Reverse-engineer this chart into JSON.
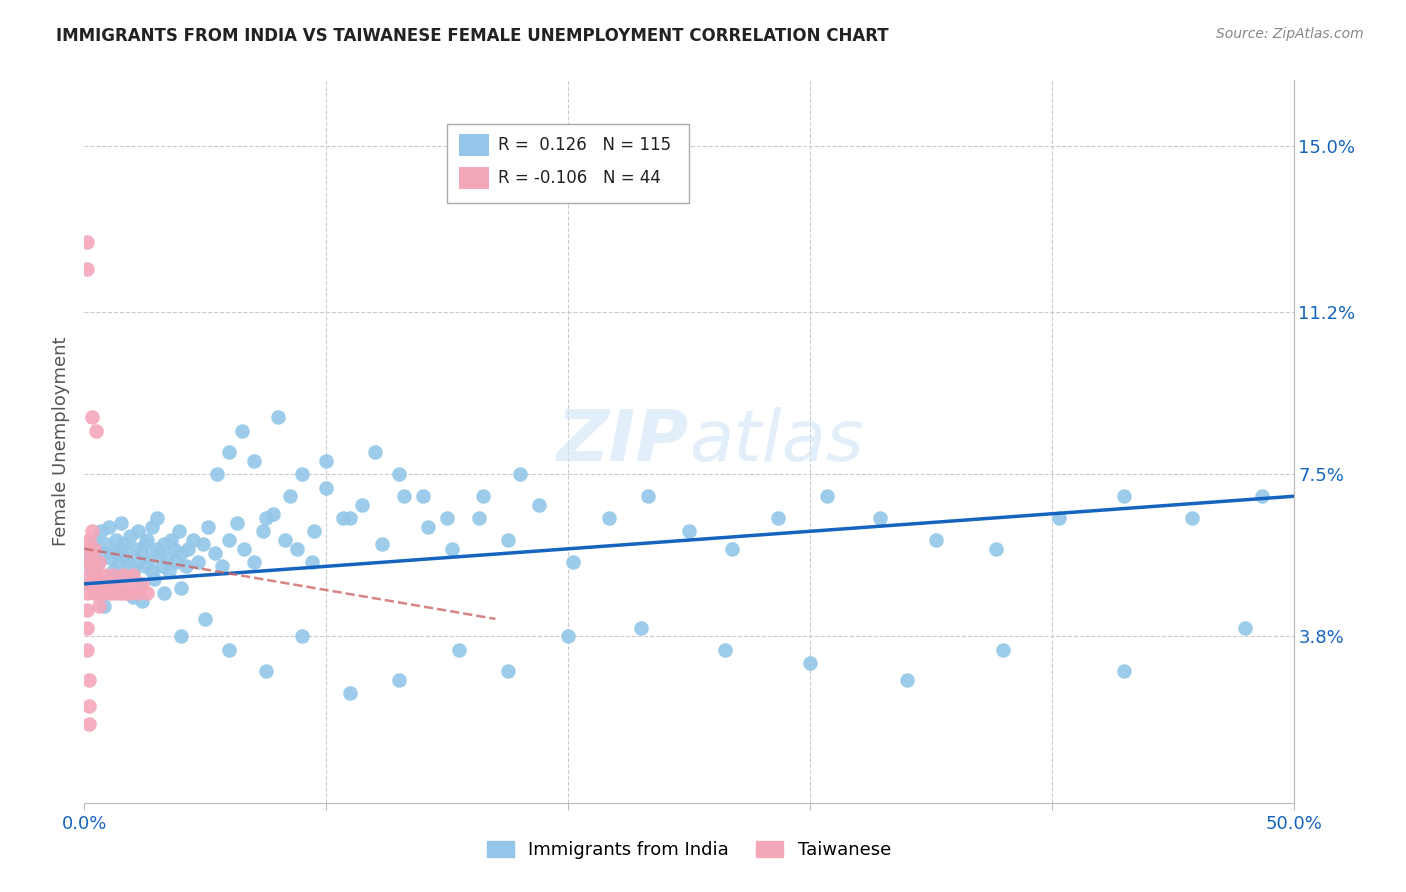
{
  "title": "IMMIGRANTS FROM INDIA VS TAIWANESE FEMALE UNEMPLOYMENT CORRELATION CHART",
  "source": "Source: ZipAtlas.com",
  "ylabel": "Female Unemployment",
  "legend_label1": "Immigrants from India",
  "legend_label2": "Taiwanese",
  "legend_r1_val": "0.126",
  "legend_n1_val": "115",
  "legend_r2_val": "-0.106",
  "legend_n2_val": "44",
  "color_india": "#93C6E8",
  "color_taiwan": "#F4A7B9",
  "color_india_line": "#1565C0",
  "color_taiwan_line": "#cc6666",
  "background_color": "#ffffff",
  "grid_color": "#cccccc",
  "right_ytick_vals": [
    15.0,
    11.2,
    7.5,
    3.8
  ],
  "right_ytick_labels": [
    "15.0%",
    "11.2%",
    "7.5%",
    "3.8%"
  ],
  "xlim": [
    0.0,
    0.5
  ],
  "ylim": [
    0.0,
    16.5
  ],
  "india_trend_x": [
    0.0,
    0.5
  ],
  "india_trend_y": [
    5.0,
    7.0
  ],
  "taiwan_trend_x": [
    0.0,
    0.17
  ],
  "taiwan_trend_y": [
    5.8,
    4.2
  ],
  "india_x": [
    0.001,
    0.002,
    0.003,
    0.004,
    0.004,
    0.005,
    0.006,
    0.007,
    0.007,
    0.008,
    0.008,
    0.009,
    0.01,
    0.01,
    0.011,
    0.012,
    0.012,
    0.013,
    0.013,
    0.014,
    0.015,
    0.015,
    0.016,
    0.016,
    0.017,
    0.018,
    0.018,
    0.019,
    0.02,
    0.02,
    0.021,
    0.022,
    0.022,
    0.023,
    0.024,
    0.024,
    0.025,
    0.025,
    0.026,
    0.027,
    0.028,
    0.028,
    0.029,
    0.03,
    0.03,
    0.031,
    0.032,
    0.033,
    0.033,
    0.034,
    0.035,
    0.036,
    0.037,
    0.038,
    0.039,
    0.04,
    0.04,
    0.042,
    0.043,
    0.045,
    0.047,
    0.049,
    0.051,
    0.054,
    0.057,
    0.06,
    0.063,
    0.066,
    0.07,
    0.074,
    0.078,
    0.083,
    0.088,
    0.094,
    0.1,
    0.107,
    0.115,
    0.123,
    0.132,
    0.142,
    0.152,
    0.163,
    0.175,
    0.188,
    0.202,
    0.217,
    0.233,
    0.25,
    0.268,
    0.287,
    0.307,
    0.329,
    0.352,
    0.377,
    0.403,
    0.43,
    0.458,
    0.487,
    0.055,
    0.06,
    0.065,
    0.07,
    0.075,
    0.08,
    0.085,
    0.09,
    0.095,
    0.1,
    0.11,
    0.12,
    0.13,
    0.14,
    0.15,
    0.165,
    0.18
  ],
  "india_y": [
    5.5,
    5.8,
    5.3,
    6.0,
    5.2,
    4.8,
    5.5,
    5.0,
    6.2,
    5.7,
    4.5,
    5.9,
    6.3,
    5.1,
    5.6,
    5.3,
    4.9,
    5.7,
    6.0,
    5.4,
    5.8,
    6.4,
    5.2,
    5.9,
    5.6,
    4.8,
    5.5,
    6.1,
    5.3,
    4.7,
    5.8,
    5.5,
    6.2,
    5.0,
    5.7,
    4.6,
    5.9,
    5.4,
    6.0,
    5.6,
    5.3,
    6.3,
    5.1,
    5.8,
    6.5,
    5.7,
    5.4,
    5.9,
    4.8,
    5.6,
    5.3,
    6.0,
    5.8,
    5.5,
    6.2,
    5.7,
    4.9,
    5.4,
    5.8,
    6.0,
    5.5,
    5.9,
    6.3,
    5.7,
    5.4,
    6.0,
    6.4,
    5.8,
    5.5,
    6.2,
    6.6,
    6.0,
    5.8,
    5.5,
    7.2,
    6.5,
    6.8,
    5.9,
    7.0,
    6.3,
    5.8,
    6.5,
    6.0,
    6.8,
    5.5,
    6.5,
    7.0,
    6.2,
    5.8,
    6.5,
    7.0,
    6.5,
    6.0,
    5.8,
    6.5,
    7.0,
    6.5,
    7.0,
    7.5,
    8.0,
    8.5,
    7.8,
    6.5,
    8.8,
    7.0,
    7.5,
    6.2,
    7.8,
    6.5,
    8.0,
    7.5,
    7.0,
    6.5,
    7.0,
    7.5
  ],
  "india_below_x": [
    0.04,
    0.05,
    0.06,
    0.075,
    0.09,
    0.11,
    0.13,
    0.155,
    0.175,
    0.2,
    0.23,
    0.265,
    0.3,
    0.34,
    0.38,
    0.43,
    0.48
  ],
  "india_below_y": [
    3.8,
    4.2,
    3.5,
    3.0,
    3.8,
    2.5,
    2.8,
    3.5,
    3.0,
    3.8,
    4.0,
    3.5,
    3.2,
    2.8,
    3.5,
    3.0,
    4.0
  ],
  "taiwan_x": [
    0.001,
    0.001,
    0.001,
    0.001,
    0.001,
    0.001,
    0.001,
    0.001,
    0.002,
    0.002,
    0.002,
    0.002,
    0.002,
    0.002,
    0.003,
    0.003,
    0.003,
    0.003,
    0.004,
    0.004,
    0.004,
    0.005,
    0.005,
    0.005,
    0.006,
    0.006,
    0.007,
    0.007,
    0.008,
    0.009,
    0.01,
    0.011,
    0.012,
    0.013,
    0.014,
    0.015,
    0.016,
    0.017,
    0.018,
    0.019,
    0.02,
    0.022,
    0.024,
    0.026
  ],
  "taiwan_y": [
    12.8,
    12.2,
    5.8,
    5.2,
    4.8,
    4.4,
    4.0,
    3.5,
    6.0,
    5.5,
    5.0,
    2.8,
    2.2,
    1.8,
    6.2,
    5.5,
    5.0,
    8.8,
    5.8,
    5.2,
    4.8,
    5.2,
    4.8,
    8.5,
    5.5,
    4.5,
    5.0,
    4.8,
    5.2,
    4.8,
    5.0,
    4.8,
    5.2,
    4.8,
    5.0,
    4.8,
    5.2,
    4.8,
    5.0,
    4.8,
    5.2,
    4.8,
    5.0,
    4.8
  ]
}
